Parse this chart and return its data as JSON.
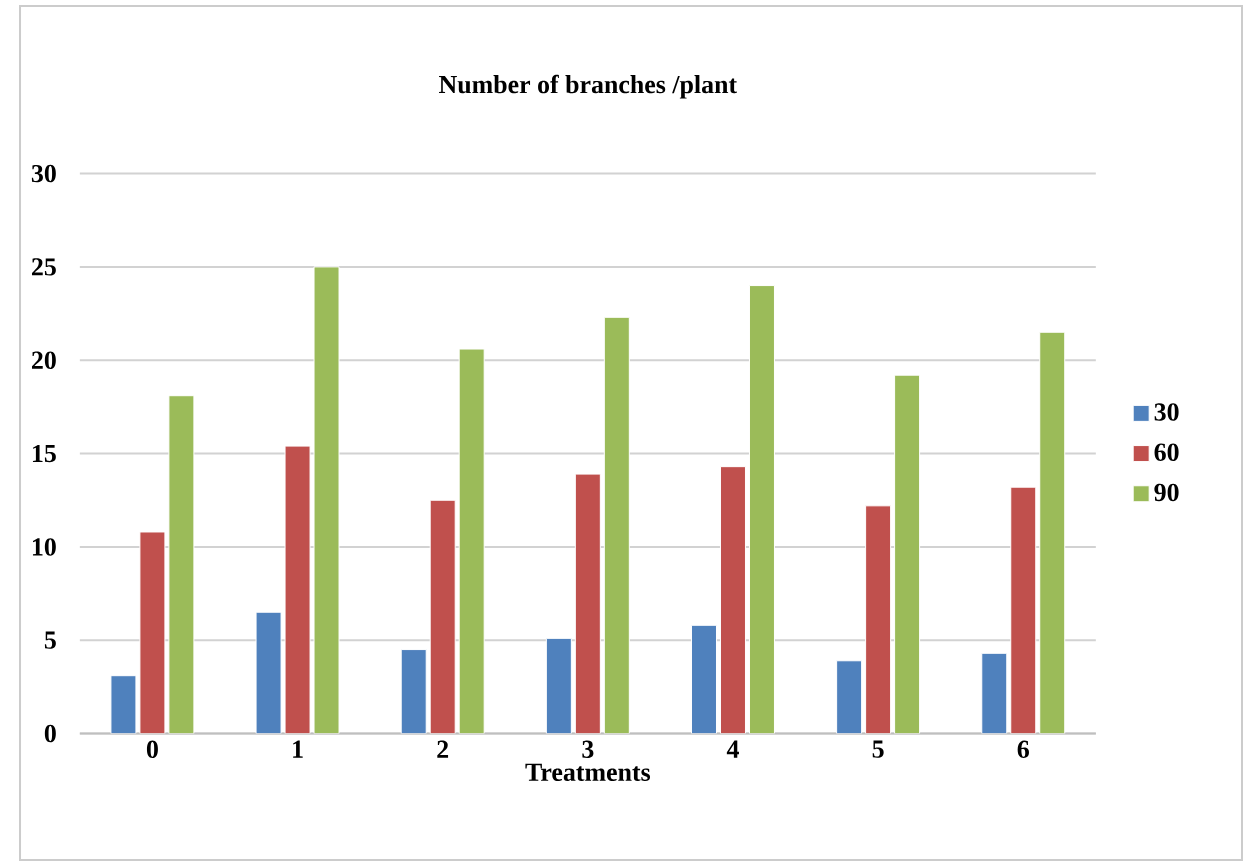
{
  "chart_data": {
    "type": "bar",
    "title": "Number of branches /plant",
    "xlabel": "Treatments",
    "categories": [
      "0",
      "1",
      "2",
      "3",
      "4",
      "5",
      "6"
    ],
    "series": [
      {
        "name": "30",
        "color": "#4f81bd",
        "values": [
          3.1,
          6.5,
          4.5,
          5.1,
          5.8,
          3.9,
          4.3
        ]
      },
      {
        "name": "60",
        "color": "#c0504d",
        "values": [
          10.8,
          15.4,
          12.5,
          13.9,
          14.3,
          12.2,
          13.2
        ]
      },
      {
        "name": "90",
        "color": "#9bbb59",
        "values": [
          18.1,
          25.0,
          20.6,
          22.3,
          24.0,
          19.2,
          21.5
        ]
      }
    ],
    "ylim": [
      0,
      30
    ],
    "yticks": [
      0,
      5,
      10,
      15,
      20,
      25,
      30
    ],
    "grid": "y",
    "legend": "right"
  }
}
